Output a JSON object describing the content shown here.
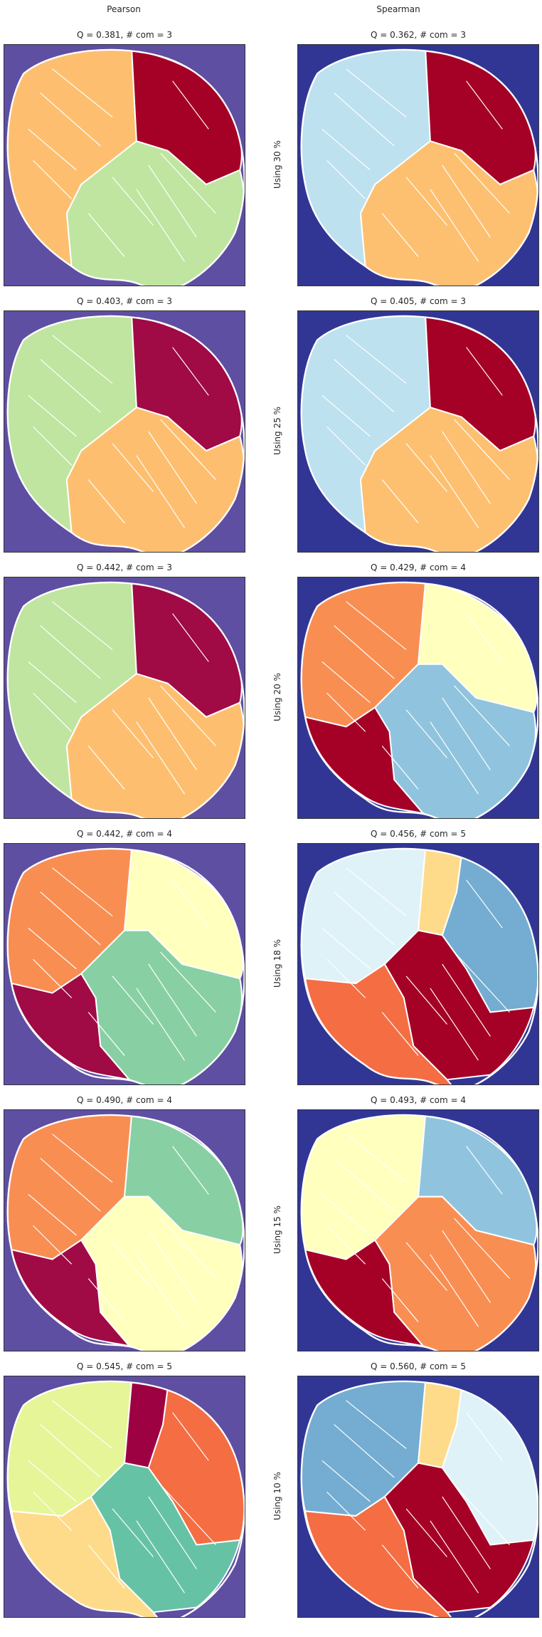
{
  "columns": {
    "left": "Pearson",
    "right": "Spearman"
  },
  "palette": {
    "pearson_bg": "#5e4fa2",
    "spearman_bg": "#313695",
    "boundary": "#ffffff"
  },
  "rows": [
    {
      "label": "Using 30 %",
      "pearson": {
        "title": "Q = 0.381,  # com = 3",
        "colors": [
          "#fdbf6f",
          "#a50026",
          "#bfe5a0"
        ]
      },
      "spearman": {
        "title": "Q = 0.362,  # com = 3",
        "colors": [
          "#bde1ee",
          "#a50026",
          "#fdc070"
        ]
      }
    },
    {
      "label": "Using 25 %",
      "pearson": {
        "title": "Q = 0.403,  # com = 3",
        "colors": [
          "#bfe5a0",
          "#a00a45",
          "#fdbf6f"
        ]
      },
      "spearman": {
        "title": "Q = 0.405,  # com = 3",
        "colors": [
          "#bde1ee",
          "#a50026",
          "#fdc070"
        ]
      }
    },
    {
      "label": "Using 20 %",
      "pearson": {
        "title": "Q = 0.442,  # com = 3",
        "colors": [
          "#bfe5a0",
          "#a00a45",
          "#fdbf6f"
        ]
      },
      "spearman": {
        "title": "Q = 0.429,  # com = 4",
        "colors": [
          "#f98e52",
          "#ffffbe",
          "#90c4de",
          "#a50026"
        ]
      }
    },
    {
      "label": "Using 18 %",
      "pearson": {
        "title": "Q = 0.442,  # com = 4",
        "colors": [
          "#f98e52",
          "#ffffbe",
          "#88d0a4",
          "#a00a45"
        ]
      },
      "spearman": {
        "title": "Q = 0.456,  # com = 5",
        "colors": [
          "#dff2f7",
          "#fedb8b",
          "#74add1",
          "#a50026",
          "#f46d43"
        ]
      }
    },
    {
      "label": "Using 15 %",
      "pearson": {
        "title": "Q = 0.490,  # com = 4",
        "colors": [
          "#f98e52",
          "#88d0a4",
          "#ffffbe",
          "#a00a45"
        ]
      },
      "spearman": {
        "title": "Q = 0.493,  # com = 4",
        "colors": [
          "#ffffbe",
          "#90c4de",
          "#f98e52",
          "#a50026"
        ]
      }
    },
    {
      "label": "Using 10 %",
      "pearson": {
        "title": "Q = 0.545,  # com = 5",
        "colors": [
          "#e6f598",
          "#9e0142",
          "#f46d43",
          "#66c2a5",
          "#fedb8b"
        ]
      },
      "spearman": {
        "title": "Q = 0.560,  # com = 5",
        "colors": [
          "#74add1",
          "#fedb8b",
          "#dff2f7",
          "#a50026",
          "#f46d43"
        ]
      }
    }
  ]
}
